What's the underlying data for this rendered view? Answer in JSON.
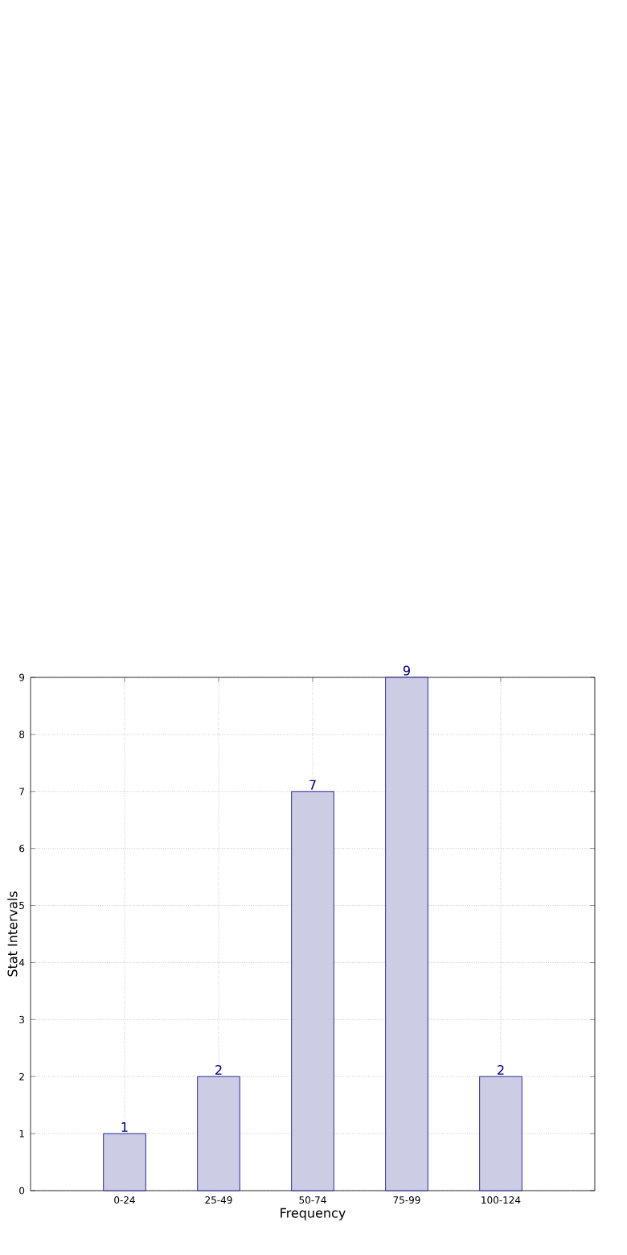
{
  "chart_data": {
    "type": "bar",
    "xlabel": "Frequency",
    "ylabel": "Stat Intervals",
    "categories": [
      "0-24",
      "25-49",
      "50-74",
      "75-99",
      "100-124"
    ],
    "values": [
      1,
      2,
      7,
      9,
      2
    ],
    "color": "#ccccE4",
    "ylim": [
      0,
      9
    ],
    "yticks": [
      0,
      1,
      2,
      3,
      4,
      5,
      6,
      7,
      8,
      9
    ],
    "grid": true,
    "data_labels": true
  }
}
